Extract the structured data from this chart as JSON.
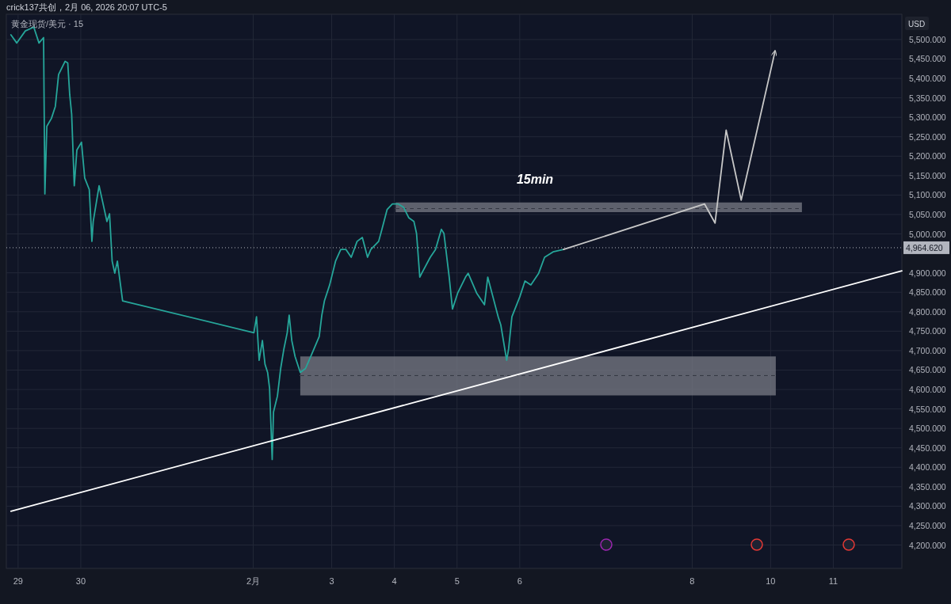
{
  "chart_data": {
    "type": "line",
    "title": "黄金现货/美元 · 15",
    "subtitle": "crick137共创，2月 06, 2026 20:07 UTC-5",
    "ylabel": "USD",
    "annotations": [
      "15min"
    ],
    "grid": true,
    "marker": "none",
    "xlim": [
      "2026-01-28T19:30",
      "2026-02-12T02:15"
    ],
    "ylim": [
      4140,
      5565
    ],
    "xticks": [
      {
        "value": "2026-01-29",
        "label": "29"
      },
      {
        "value": "2026-01-30",
        "label": "30"
      },
      {
        "value": "2026-02-01T18:00",
        "label": "2月"
      },
      {
        "value": "2026-02-03",
        "label": "3"
      },
      {
        "value": "2026-02-04",
        "label": "4"
      },
      {
        "value": "2026-02-05",
        "label": "5"
      },
      {
        "value": "2026-02-06",
        "label": "6"
      },
      {
        "value": "2026-02-08T18:00",
        "label": "8"
      },
      {
        "value": "2026-02-10",
        "label": "10"
      },
      {
        "value": "2026-02-11",
        "label": "11"
      }
    ],
    "yticks": [
      {
        "value": 4200,
        "label": "4,200.000"
      },
      {
        "value": 4250,
        "label": "4,250.000"
      },
      {
        "value": 4300,
        "label": "4,300.000"
      },
      {
        "value": 4350,
        "label": "4,350.000"
      },
      {
        "value": 4400,
        "label": "4,400.000"
      },
      {
        "value": 4450,
        "label": "4,450.000"
      },
      {
        "value": 4500,
        "label": "4,500.000"
      },
      {
        "value": 4550,
        "label": "4,550.000"
      },
      {
        "value": 4600,
        "label": "4,600.000"
      },
      {
        "value": 4650,
        "label": "4,650.000"
      },
      {
        "value": 4700,
        "label": "4,700.000"
      },
      {
        "value": 4750,
        "label": "4,750.000"
      },
      {
        "value": 4800,
        "label": "4,800.000"
      },
      {
        "value": 4850,
        "label": "4,850.000"
      },
      {
        "value": 4900,
        "label": "4,900.000"
      },
      {
        "value": 5000,
        "label": "5,000.000"
      },
      {
        "value": 5050,
        "label": "5,050.000"
      },
      {
        "value": 5100,
        "label": "5,100.000"
      },
      {
        "value": 5150,
        "label": "5,150.000"
      },
      {
        "value": 5200,
        "label": "5,200.000"
      },
      {
        "value": 5250,
        "label": "5,250.000"
      },
      {
        "value": 5300,
        "label": "5,300.000"
      },
      {
        "value": 5350,
        "label": "5,350.000"
      },
      {
        "value": 5400,
        "label": "5,400.000"
      },
      {
        "value": 5450,
        "label": "5,450.000"
      },
      {
        "value": 5500,
        "label": "5,500.000"
      }
    ],
    "ref_lines": [
      {
        "axis": "y",
        "value": 4964.62,
        "label": "4,964.620",
        "color": "#b2b5be",
        "line_style": "dotted"
      }
    ],
    "series": [
      {
        "type": "line",
        "color": "#787b86",
        "line_style": "dashed",
        "x": [
          "2026-02-04T00:30",
          "2026-02-10T12:00"
        ],
        "values": [
          5065,
          5065
        ],
        "lower": [
          5056,
          5056
        ],
        "upper": [
          5081,
          5081
        ]
      },
      {
        "type": "line",
        "color": "#787b86",
        "line_style": "dashed",
        "x": [
          "2026-02-02T12:00",
          "2026-02-10T02:00"
        ],
        "values": [
          4636,
          4636
        ],
        "lower": [
          4585,
          4585
        ],
        "upper": [
          4685,
          4685
        ]
      },
      {
        "type": "line",
        "color": "#26a69a",
        "line_style": "solid",
        "x": [
          "2026-01-28T21:15",
          "2026-01-28T23:30",
          "2026-01-29T02:45",
          "2026-01-29T06:00",
          "2026-01-29T08:00",
          "2026-01-29T09:45",
          "2026-01-29T10:15",
          "2026-01-29T11:00",
          "2026-01-29T12:45",
          "2026-01-29T14:15",
          "2026-01-29T15:30",
          "2026-01-29T18:00",
          "2026-01-29T19:00",
          "2026-01-29T19:45",
          "2026-01-29T20:30",
          "2026-01-29T21:30",
          "2026-01-29T22:30",
          "2026-01-30T00:15",
          "2026-01-30T01:30",
          "2026-01-30T03:15",
          "2026-01-30T04:15",
          "2026-01-30T04:45",
          "2026-01-30T07:00",
          "2026-01-30T09:00",
          "2026-01-30T10:00",
          "2026-01-30T11:00",
          "2026-01-30T12:00",
          "2026-01-30T13:00",
          "2026-01-30T14:00",
          "2026-01-30T16:00",
          "2026-02-01T18:15",
          "2026-02-01T19:15",
          "2026-02-01T20:15",
          "2026-02-01T21:30",
          "2026-02-01T22:30",
          "2026-02-01T23:30",
          "2026-02-02T00:15",
          "2026-02-02T01:15",
          "2026-02-02T01:45",
          "2026-02-02T03:15",
          "2026-02-02T04:30",
          "2026-02-02T05:45",
          "2026-02-02T07:00",
          "2026-02-02T07:45",
          "2026-02-02T08:45",
          "2026-02-02T10:00",
          "2026-02-02T12:00",
          "2026-02-02T14:00",
          "2026-02-02T16:00",
          "2026-02-02T19:15",
          "2026-02-02T20:15",
          "2026-02-02T21:15",
          "2026-02-02T23:15",
          "2026-02-03T01:30",
          "2026-02-03T03:30",
          "2026-02-03T05:30",
          "2026-02-03T07:30",
          "2026-02-03T09:45",
          "2026-02-03T11:45",
          "2026-02-03T13:45",
          "2026-02-03T15:00",
          "2026-02-03T18:00",
          "2026-02-03T19:15",
          "2026-02-03T21:15",
          "2026-02-03T23:15",
          "2026-02-04T01:30",
          "2026-02-04T03:30",
          "2026-02-04T05:30",
          "2026-02-04T07:30",
          "2026-02-04T08:30",
          "2026-02-04T09:45",
          "2026-02-04T10:30",
          "2026-02-04T13:45",
          "2026-02-04T15:45",
          "2026-02-04T18:00",
          "2026-02-04T19:00",
          "2026-02-04T21:00",
          "2026-02-04T22:15",
          "2026-02-05T00:15",
          "2026-02-05T03:15",
          "2026-02-05T04:15",
          "2026-02-05T07:30",
          "2026-02-05T10:30",
          "2026-02-05T11:45",
          "2026-02-05T13:45",
          "2026-02-05T15:45",
          "2026-02-05T16:45",
          "2026-02-05T19:00",
          "2026-02-05T19:45",
          "2026-02-05T21:00",
          "2026-02-06T00:00",
          "2026-02-06T02:00",
          "2026-02-06T04:15",
          "2026-02-06T07:15",
          "2026-02-06T09:30",
          "2026-02-06T12:45",
          "2026-02-06T16:45"
        ],
        "values": [
          5512,
          5491,
          5522,
          5532,
          5491,
          5505,
          5103,
          5277,
          5297,
          5328,
          5410,
          5444,
          5440,
          5359,
          5308,
          5124,
          5216,
          5236,
          5144,
          5114,
          4981,
          5032,
          5124,
          5063,
          5032,
          5052,
          4930,
          4899,
          4930,
          4828,
          4746,
          4787,
          4675,
          4726,
          4665,
          4644,
          4603,
          4420,
          4542,
          4583,
          4654,
          4705,
          4746,
          4791,
          4726,
          4685,
          4644,
          4654,
          4685,
          4736,
          4791,
          4828,
          4869,
          4930,
          4960,
          4960,
          4940,
          4981,
          4991,
          4940,
          4960,
          4981,
          5012,
          5063,
          5077,
          5077,
          5069,
          5042,
          5032,
          5001,
          4889,
          4899,
          4940,
          4960,
          5012,
          5001,
          4889,
          4807,
          4848,
          4889,
          4899,
          4848,
          4818,
          4889,
          4838,
          4787,
          4766,
          4675,
          4705,
          4787,
          4838,
          4879,
          4869,
          4899,
          4940,
          4954,
          4960
        ]
      },
      {
        "type": "line",
        "color": "#ffffff",
        "line_style": "solid",
        "x": [
          "2026-01-28T21:15",
          "2026-02-12T02:15"
        ],
        "values": [
          4287,
          4905
        ]
      },
      {
        "type": "line",
        "color": "#c8c8c8",
        "line_style": "solid",
        "x": [
          "2026-02-06T16:45",
          "2026-02-08T22:45",
          "2026-02-09T02:45",
          "2026-02-09T07:00",
          "2026-02-09T12:45",
          "2026-02-10T01:45"
        ],
        "values": [
          4960,
          5077,
          5028,
          5267,
          5087,
          5471
        ]
      }
    ]
  }
}
